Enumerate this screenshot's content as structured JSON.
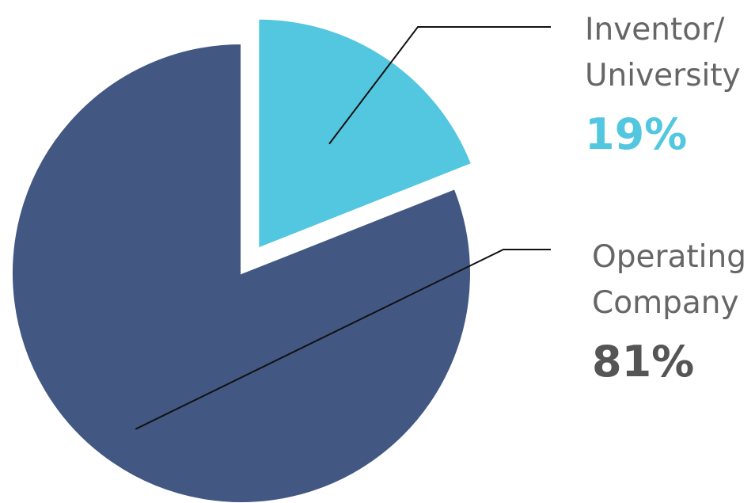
{
  "chart_data": {
    "type": "pie",
    "slices": [
      {
        "label_lines": [
          "Inventor/",
          "University"
        ],
        "value": 19,
        "value_label": "19%",
        "color": "#52c7df",
        "label_color": "#52c7df",
        "exploded": true
      },
      {
        "label_lines": [
          "Operating",
          "Company"
        ],
        "value": 81,
        "value_label": "81%",
        "color": "#425882",
        "label_color": "#555555",
        "exploded": false
      }
    ],
    "start_angle": "12 o'clock",
    "direction": "clockwise",
    "legend": "none"
  }
}
